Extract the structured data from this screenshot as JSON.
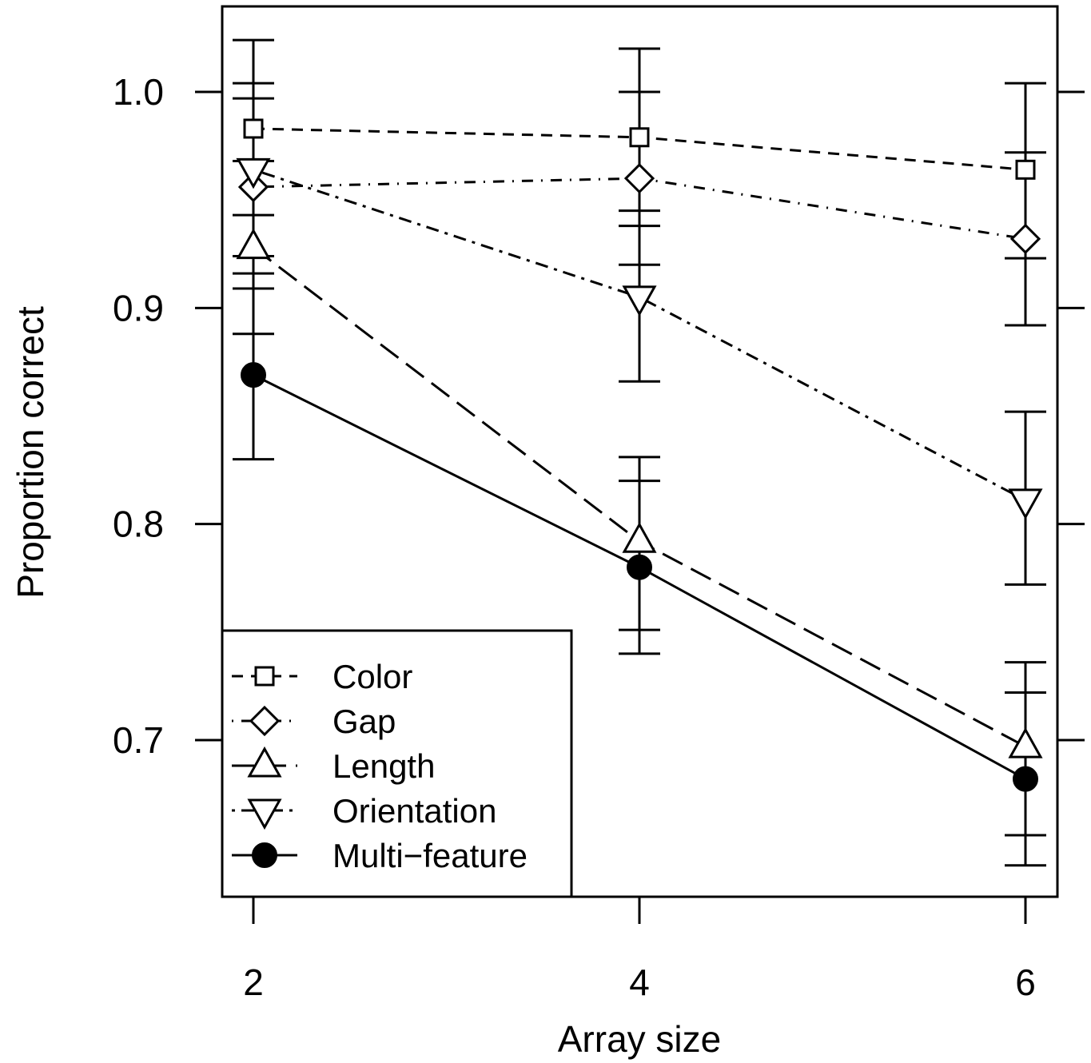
{
  "chart_data": {
    "type": "line",
    "xlabel": "Array size",
    "ylabel": "Proportion correct",
    "x": [
      2,
      4,
      6
    ],
    "xlim": [
      1.9,
      6.2
    ],
    "ylim": [
      0.63,
      1.04
    ],
    "xticks": [
      "2",
      "4",
      "6"
    ],
    "yticks": [
      "0.7",
      "0.8",
      "0.9",
      "1.0"
    ],
    "grid": false,
    "legend_position": "bottom-left",
    "series": [
      {
        "name": "Color",
        "marker": "square",
        "line": "dashed",
        "values": [
          0.983,
          0.979,
          0.964
        ],
        "ci_low": [
          0.943,
          0.938,
          0.923
        ],
        "ci_high": [
          1.024,
          1.02,
          1.004
        ]
      },
      {
        "name": "Gap",
        "marker": "diamond",
        "line": "dotdash",
        "values": [
          0.956,
          0.96,
          0.932
        ],
        "ci_low": [
          0.916,
          0.92,
          0.892
        ],
        "ci_high": [
          0.997,
          1.0,
          0.972
        ]
      },
      {
        "name": "Length",
        "marker": "triangle-up",
        "line": "longdash",
        "values": [
          0.928,
          0.792,
          0.697
        ],
        "ci_low": [
          0.888,
          0.751,
          0.656
        ],
        "ci_high": [
          0.968,
          0.831,
          0.736
        ]
      },
      {
        "name": "Orientation",
        "marker": "triangle-down",
        "line": "dotdash2",
        "values": [
          0.964,
          0.905,
          0.811
        ],
        "ci_low": [
          0.924,
          0.866,
          0.772
        ],
        "ci_high": [
          1.004,
          0.945,
          0.852
        ]
      },
      {
        "name": "Multi−feature",
        "marker": "filled-circle",
        "line": "solid",
        "values": [
          0.869,
          0.78,
          0.682
        ],
        "ci_low": [
          0.83,
          0.74,
          0.642
        ],
        "ci_high": [
          0.909,
          0.82,
          0.722
        ]
      }
    ]
  }
}
